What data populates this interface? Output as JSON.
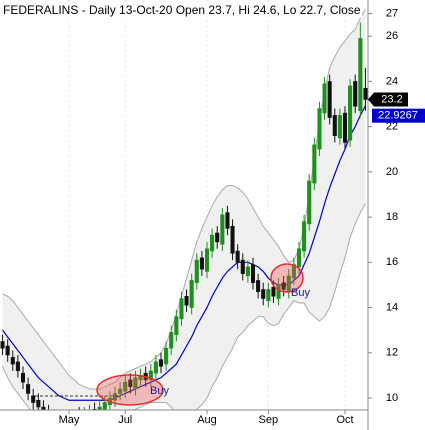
{
  "chart_data": {
    "type": "candlestick",
    "title": "FEDERALINS - Daily 13-Oct-20 Open 23.7, Hi 24.6, Lo 22.7, Close",
    "categories": [
      null,
      null,
      null,
      null,
      null,
      null,
      null,
      null,
      null,
      null,
      null,
      null,
      null,
      "May",
      null,
      null,
      null,
      null,
      null,
      null,
      null,
      null,
      null,
      null,
      "Jul",
      null,
      null,
      null,
      null,
      null,
      null,
      null,
      null,
      null,
      null,
      null,
      null,
      null,
      null,
      null,
      "Aug",
      null,
      null,
      null,
      null,
      null,
      null,
      null,
      null,
      null,
      null,
      null,
      "Sep",
      null,
      null,
      null,
      null,
      null,
      null,
      null,
      null,
      null,
      null,
      null,
      null,
      null,
      null,
      "Oct",
      null,
      null,
      null,
      null
    ],
    "open": [
      12.5,
      12.3,
      11.8,
      11.6,
      11.1,
      10.6,
      10.1,
      9.9,
      9.6,
      9.4,
      9.2,
      8.9,
      9.1,
      8.8,
      9.0,
      9.3,
      9.0,
      9.2,
      9.5,
      9.2,
      9.5,
      9.7,
      9.9,
      10.2,
      10.3,
      10.8,
      10.4,
      10.8,
      11.1,
      10.8,
      11.1,
      11.7,
      11.5,
      12.2,
      12.8,
      13.5,
      14.5,
      14.0,
      15.1,
      16.2,
      15.6,
      16.5,
      17.3,
      16.8,
      18.2,
      17.6,
      16.5,
      16.1,
      15.4,
      15.9,
      15.2,
      14.8,
      14.3,
      14.9,
      14.4,
      15.1,
      14.7,
      15.3,
      15.8,
      16.5,
      17.7,
      19.5,
      21.0,
      22.6,
      24.0,
      22.5,
      21.5,
      22.6,
      21.4,
      24.0,
      22.7,
      23.7
    ],
    "high": [
      12.8,
      12.6,
      12.1,
      11.9,
      11.4,
      10.9,
      10.4,
      10.2,
      9.9,
      9.7,
      9.5,
      9.4,
      9.4,
      9.3,
      9.5,
      9.6,
      9.6,
      9.7,
      9.8,
      9.9,
      10.1,
      10.3,
      10.5,
      10.7,
      11.0,
      11.1,
      11.2,
      11.3,
      11.4,
      11.5,
      11.9,
      12.0,
      12.5,
      13.2,
      13.9,
      14.7,
      14.8,
      15.5,
      16.4,
      16.5,
      16.9,
      17.5,
      17.6,
      18.4,
      18.5,
      17.9,
      16.8,
      16.4,
      16.1,
      16.2,
      15.5,
      15.1,
      15.1,
      15.2,
      15.3,
      15.4,
      15.7,
      16.2,
      16.9,
      18.1,
      19.9,
      21.5,
      23.1,
      24.2,
      24.3,
      22.8,
      22.8,
      22.9,
      24.1,
      24.3,
      26.6,
      24.6
    ],
    "low": [
      11.9,
      11.6,
      11.2,
      10.9,
      10.4,
      9.9,
      9.5,
      9.3,
      9.0,
      8.9,
      8.7,
      8.6,
      8.6,
      8.5,
      8.7,
      8.8,
      8.7,
      8.9,
      9.0,
      8.9,
      9.2,
      9.4,
      9.6,
      9.9,
      10.0,
      10.2,
      10.1,
      10.5,
      10.5,
      10.5,
      10.8,
      11.1,
      11.2,
      11.9,
      12.5,
      13.2,
      13.8,
      13.7,
      14.8,
      15.4,
      15.3,
      16.2,
      16.6,
      16.5,
      17.2,
      16.1,
      15.7,
      15.2,
      15.1,
      14.8,
      14.4,
      14.1,
      14.0,
      14.2,
      14.1,
      14.5,
      14.4,
      15.0,
      15.5,
      16.2,
      17.4,
      19.2,
      20.7,
      22.3,
      22.1,
      21.3,
      21.2,
      21.0,
      21.1,
      22.6,
      22.4,
      22.7
    ],
    "close": [
      12.2,
      11.9,
      11.5,
      11.2,
      10.7,
      10.2,
      9.8,
      9.6,
      9.3,
      9.2,
      9.0,
      9.1,
      8.9,
      9.0,
      9.2,
      9.1,
      9.3,
      9.4,
      9.3,
      9.6,
      9.8,
      10.0,
      10.2,
      10.4,
      10.7,
      10.5,
      10.9,
      11.0,
      10.8,
      11.2,
      11.6,
      11.4,
      12.2,
      12.9,
      13.6,
      14.4,
      14.1,
      15.2,
      16.1,
      15.7,
      16.6,
      17.2,
      16.9,
      18.1,
      17.5,
      16.4,
      16.0,
      15.5,
      15.8,
      15.1,
      14.7,
      14.4,
      14.8,
      14.5,
      15.0,
      14.8,
      15.4,
      15.9,
      16.6,
      17.8,
      19.6,
      21.2,
      22.8,
      23.9,
      22.4,
      21.6,
      22.5,
      21.3,
      23.8,
      22.9,
      25.9,
      23.2
    ],
    "ma": [
      13.0,
      12.7,
      12.4,
      12.1,
      11.8,
      11.5,
      11.2,
      10.9,
      10.7,
      10.5,
      10.3,
      10.1,
      10.0,
      9.9,
      9.9,
      9.9,
      9.9,
      9.9,
      9.9,
      9.9,
      9.9,
      9.9,
      10.0,
      10.1,
      10.2,
      10.3,
      10.4,
      10.5,
      10.6,
      10.7,
      10.8,
      10.9,
      11.1,
      11.3,
      11.5,
      11.9,
      12.3,
      12.7,
      13.2,
      13.6,
      14.0,
      14.5,
      14.9,
      15.3,
      15.6,
      15.8,
      16.0,
      16.0,
      16.0,
      15.9,
      15.8,
      15.6,
      15.3,
      15.1,
      15.0,
      15.0,
      15.0,
      15.2,
      15.4,
      15.9,
      16.4,
      17.1,
      17.8,
      18.6,
      19.3,
      19.9,
      20.5,
      21.0,
      21.6,
      22.0,
      22.5,
      22.9267
    ],
    "upper": [
      14.6,
      14.5,
      14.3,
      14.0,
      13.7,
      13.4,
      13.1,
      12.8,
      12.5,
      12.2,
      11.9,
      11.6,
      11.3,
      11.0,
      10.8,
      10.6,
      10.5,
      10.4,
      10.4,
      10.4,
      10.5,
      10.6,
      10.7,
      10.9,
      11.1,
      11.2,
      11.3,
      11.4,
      11.5,
      11.6,
      11.8,
      12.0,
      12.4,
      13.0,
      13.7,
      14.5,
      15.3,
      16.1,
      16.9,
      17.5,
      18.0,
      18.5,
      18.9,
      19.2,
      19.4,
      19.4,
      19.3,
      19.1,
      18.8,
      18.4,
      18.0,
      17.6,
      17.3,
      17.0,
      16.7,
      16.3,
      16.0,
      16.1,
      16.6,
      17.6,
      19.0,
      20.6,
      22.2,
      23.6,
      24.6,
      25.1,
      25.5,
      25.8,
      26.1,
      26.3,
      26.8,
      27.2
    ],
    "lower": [
      11.4,
      10.9,
      10.5,
      10.2,
      9.9,
      9.6,
      9.3,
      9.0,
      8.9,
      8.8,
      8.7,
      8.6,
      8.7,
      8.8,
      9.0,
      9.2,
      9.3,
      9.4,
      9.4,
      9.4,
      9.3,
      9.2,
      9.3,
      9.3,
      9.3,
      9.4,
      9.5,
      9.6,
      9.7,
      9.8,
      9.8,
      9.8,
      9.8,
      9.6,
      9.3,
      9.3,
      9.3,
      9.3,
      9.5,
      9.7,
      10.0,
      10.5,
      10.9,
      11.4,
      11.8,
      12.2,
      12.7,
      12.9,
      13.2,
      13.4,
      13.6,
      13.6,
      13.3,
      13.2,
      13.3,
      13.7,
      14.0,
      14.3,
      14.2,
      14.2,
      13.8,
      13.6,
      13.4,
      13.6,
      14.0,
      14.7,
      15.5,
      16.2,
      17.1,
      17.7,
      18.2,
      18.6
    ],
    "up_color": "#1f8f1f",
    "down_color": "#111111",
    "ma_color": "#0000cc",
    "band_color": "#aaaaaa",
    "ylim": [
      9.47,
      27.6
    ],
    "yticks": [
      10,
      12,
      14,
      16,
      18,
      20,
      22,
      24,
      26,
      27
    ],
    "annotations": [
      "Buy",
      "Buy"
    ]
  }
}
